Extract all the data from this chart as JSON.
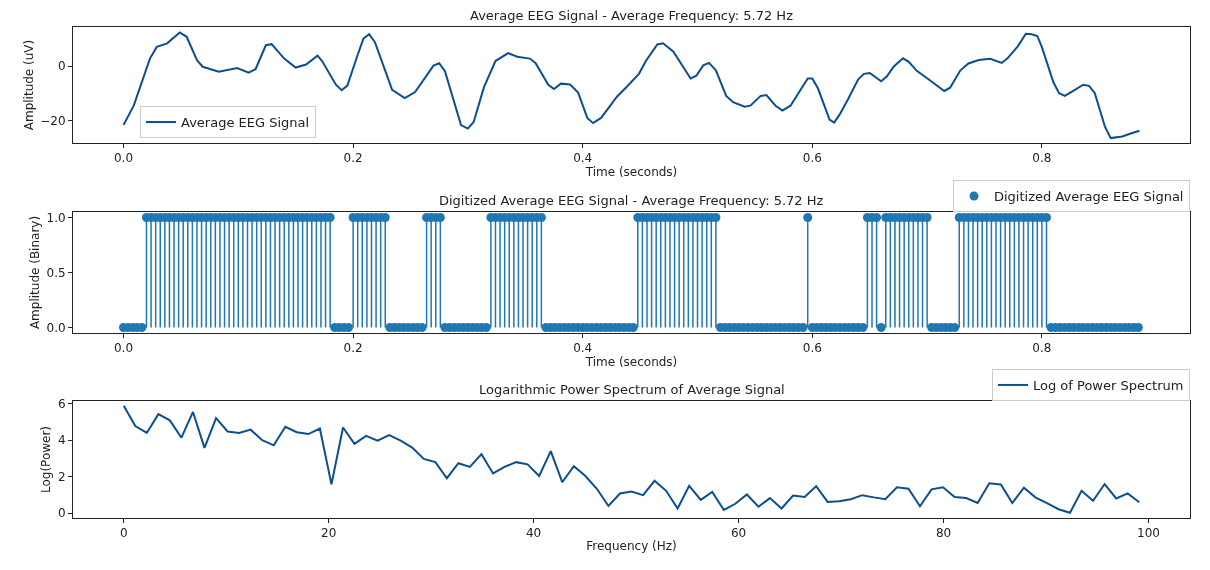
{
  "chart_data": [
    {
      "type": "line",
      "title": "Average EEG Signal - Average Frequency: 5.72 Hz",
      "xlabel": "Time (seconds)",
      "ylabel": "Amplitude (uV)",
      "legend": "bottom left",
      "line_style": "solid",
      "x": [
        0,
        0.009,
        0.023,
        0.029,
        0.038,
        0.049,
        0.055,
        0.064,
        0.069,
        0.083,
        0.099,
        0.109,
        0.115,
        0.124,
        0.129,
        0.14,
        0.15,
        0.159,
        0.169,
        0.173,
        0.185,
        0.19,
        0.195,
        0.204,
        0.209,
        0.214,
        0.219,
        0.234,
        0.245,
        0.254,
        0.27,
        0.275,
        0.28,
        0.294,
        0.3,
        0.305,
        0.314,
        0.324,
        0.335,
        0.343,
        0.354,
        0.359,
        0.37,
        0.375,
        0.381,
        0.389,
        0.396,
        0.404,
        0.409,
        0.416,
        0.43,
        0.438,
        0.449,
        0.455,
        0.465,
        0.47,
        0.479,
        0.494,
        0.499,
        0.505,
        0.51,
        0.516,
        0.525,
        0.531,
        0.541,
        0.546,
        0.555,
        0.56,
        0.568,
        0.574,
        0.581,
        0.596,
        0.6,
        0.605,
        0.615,
        0.619,
        0.624,
        0.631,
        0.64,
        0.645,
        0.65,
        0.66,
        0.665,
        0.671,
        0.679,
        0.684,
        0.691,
        0.7,
        0.715,
        0.72,
        0.729,
        0.736,
        0.745,
        0.755,
        0.765,
        0.77,
        0.779,
        0.786,
        0.791,
        0.796,
        0.8,
        0.81,
        0.815,
        0.82,
        0.828,
        0.836,
        0.841,
        0.846,
        0.855,
        0.86,
        0.87,
        0.878,
        0.885
      ],
      "series": [
        {
          "name": "Average EEG Signal",
          "color": "#0b4f8f",
          "values": [
            -21.6,
            -14.4,
            2.8,
            7.1,
            8.4,
            12.4,
            10.8,
            2.2,
            -0.2,
            -2.0,
            -0.7,
            -2.4,
            -1.1,
            7.7,
            8.1,
            2.8,
            -0.5,
            0.6,
            3.9,
            1.9,
            -6.8,
            -8.8,
            -7.1,
            4.2,
            10.1,
            11.8,
            8.8,
            -8.7,
            -11.7,
            -9.5,
            0.2,
            1.1,
            -1.8,
            -21.6,
            -22.9,
            -20.5,
            -7.7,
            1.9,
            4.8,
            3.5,
            2.8,
            1.1,
            -6.8,
            -8.4,
            -6.4,
            -6.7,
            -9.7,
            -19.0,
            -20.9,
            -19.0,
            -11.1,
            -7.7,
            -2.8,
            1.9,
            8.0,
            8.4,
            5.3,
            -4.5,
            -3.5,
            0.3,
            1.2,
            -1.5,
            -10.9,
            -13.2,
            -14.9,
            -14.5,
            -10.9,
            -10.6,
            -14.5,
            -16.3,
            -14.5,
            -4.5,
            -4.5,
            -8.2,
            -19.6,
            -20.7,
            -17.6,
            -12.2,
            -4.8,
            -2.8,
            -2.5,
            -5.5,
            -3.7,
            -0.1,
            2.9,
            1.6,
            -1.7,
            -4.4,
            -9.1,
            -7.9,
            -1.5,
            1.0,
            2.3,
            2.7,
            1.2,
            2.9,
            7.3,
            11.9,
            11.7,
            11.1,
            7.0,
            -5.9,
            -9.9,
            -10.9,
            -8.9,
            -6.8,
            -7.2,
            -9.8,
            -22.3,
            -26.4,
            -25.8,
            -24.6,
            -23.7
          ]
        }
      ],
      "xlim": [
        -0.044,
        0.929
      ],
      "ylim": [
        -28.2,
        14.4
      ],
      "xticks": [
        {
          "value": 0,
          "label": "0.0"
        },
        {
          "value": 0.2,
          "label": "0.2"
        },
        {
          "value": 0.4,
          "label": "0.4"
        },
        {
          "value": 0.6,
          "label": "0.6"
        },
        {
          "value": 0.8,
          "label": "0.8"
        }
      ],
      "yticks": [
        {
          "value": -20,
          "label": "−20"
        },
        0
      ]
    },
    {
      "type": "lollipop",
      "title": "Digitized Average EEG Signal - Average Frequency: 5.72 Hz",
      "xlabel": "Time (seconds)",
      "ylabel": "Amplitude (Binary)",
      "legend": "top right",
      "marker": "circle",
      "x": [
        0,
        0.004,
        0.008,
        0.012,
        0.016,
        0.02,
        0.024,
        0.028,
        0.032,
        0.036,
        0.04,
        0.044,
        0.048,
        0.052,
        0.056,
        0.06,
        0.064,
        0.068,
        0.072,
        0.076,
        0.08,
        0.084,
        0.088,
        0.092,
        0.096,
        0.1,
        0.104,
        0.108,
        0.112,
        0.116,
        0.12,
        0.124,
        0.128,
        0.132,
        0.136,
        0.14,
        0.144,
        0.148,
        0.152,
        0.156,
        0.16,
        0.164,
        0.168,
        0.172,
        0.176,
        0.18,
        0.184,
        0.188,
        0.192,
        0.196,
        0.2,
        0.204,
        0.208,
        0.212,
        0.216,
        0.22,
        0.224,
        0.228,
        0.232,
        0.236,
        0.24,
        0.244,
        0.248,
        0.252,
        0.256,
        0.26,
        0.264,
        0.268,
        0.272,
        0.276,
        0.28,
        0.284,
        0.288,
        0.292,
        0.296,
        0.3,
        0.304,
        0.308,
        0.312,
        0.316,
        0.32,
        0.324,
        0.328,
        0.332,
        0.336,
        0.34,
        0.344,
        0.348,
        0.352,
        0.356,
        0.36,
        0.364,
        0.368,
        0.372,
        0.376,
        0.38,
        0.384,
        0.388,
        0.392,
        0.396,
        0.4,
        0.404,
        0.408,
        0.412,
        0.416,
        0.42,
        0.424,
        0.428,
        0.432,
        0.436,
        0.44,
        0.444,
        0.448,
        0.452,
        0.456,
        0.46,
        0.464,
        0.468,
        0.472,
        0.476,
        0.48,
        0.484,
        0.488,
        0.492,
        0.496,
        0.5,
        0.504,
        0.508,
        0.512,
        0.516,
        0.52,
        0.524,
        0.528,
        0.532,
        0.536,
        0.54,
        0.544,
        0.548,
        0.552,
        0.556,
        0.56,
        0.564,
        0.568,
        0.572,
        0.576,
        0.58,
        0.584,
        0.588,
        0.592,
        0.596,
        0.6,
        0.604,
        0.608,
        0.612,
        0.616,
        0.62,
        0.624,
        0.628,
        0.632,
        0.636,
        0.64,
        0.644,
        0.648,
        0.652,
        0.656,
        0.66,
        0.664,
        0.668,
        0.672,
        0.676,
        0.68,
        0.684,
        0.688,
        0.692,
        0.696,
        0.7,
        0.704,
        0.708,
        0.712,
        0.716,
        0.72,
        0.724,
        0.728,
        0.732,
        0.736,
        0.74,
        0.744,
        0.748,
        0.752,
        0.756,
        0.76,
        0.764,
        0.768,
        0.772,
        0.776,
        0.78,
        0.784,
        0.788,
        0.792,
        0.796,
        0.8,
        0.804,
        0.808,
        0.812,
        0.816,
        0.82,
        0.824,
        0.828,
        0.832,
        0.836,
        0.84,
        0.844,
        0.848,
        0.852,
        0.856,
        0.86,
        0.864,
        0.868,
        0.872,
        0.876,
        0.88,
        0.884
      ],
      "series": [
        {
          "name": "Digitized Average EEG Signal",
          "color": "#1f77b4",
          "values": [
            0,
            0,
            0,
            0,
            0,
            1,
            1,
            1,
            1,
            1,
            1,
            1,
            1,
            1,
            1,
            1,
            1,
            1,
            1,
            1,
            1,
            1,
            1,
            1,
            1,
            1,
            1,
            1,
            1,
            1,
            1,
            1,
            1,
            1,
            1,
            1,
            1,
            1,
            1,
            1,
            1,
            1,
            1,
            1,
            1,
            1,
            0,
            0,
            0,
            0,
            1,
            1,
            1,
            1,
            1,
            1,
            1,
            1,
            0,
            0,
            0,
            0,
            0,
            0,
            0,
            0,
            1,
            1,
            1,
            1,
            0,
            0,
            0,
            0,
            0,
            0,
            0,
            0,
            0,
            0,
            1,
            1,
            1,
            1,
            1,
            1,
            1,
            1,
            1,
            1,
            1,
            1,
            0,
            0,
            0,
            0,
            0,
            0,
            0,
            0,
            0,
            0,
            0,
            0,
            0,
            0,
            0,
            0,
            0,
            0,
            0,
            0,
            1,
            1,
            1,
            1,
            1,
            1,
            1,
            1,
            1,
            1,
            1,
            1,
            1,
            1,
            1,
            1,
            1,
            1,
            0,
            0,
            0,
            0,
            0,
            0,
            0,
            0,
            0,
            0,
            0,
            0,
            0,
            0,
            0,
            0,
            0,
            0,
            0,
            1,
            0,
            0,
            0,
            0,
            0,
            0,
            0,
            0,
            0,
            0,
            0,
            0,
            1,
            1,
            1,
            0,
            1,
            1,
            1,
            1,
            1,
            1,
            1,
            1,
            1,
            1,
            0,
            0,
            0,
            0,
            0,
            0,
            1,
            1,
            1,
            1,
            1,
            1,
            1,
            1,
            1,
            1,
            1,
            1,
            1,
            1,
            1,
            1,
            1,
            1,
            1,
            1,
            0,
            0,
            0,
            0,
            0,
            0,
            0,
            0,
            0,
            0,
            0,
            0,
            0,
            0,
            0,
            0,
            0,
            0,
            0,
            0
          ]
        }
      ],
      "xlim": [
        -0.044,
        0.929
      ],
      "ylim": [
        -0.05,
        1.05
      ],
      "xticks": [
        {
          "value": 0,
          "label": "0.0"
        },
        {
          "value": 0.2,
          "label": "0.2"
        },
        {
          "value": 0.4,
          "label": "0.4"
        },
        {
          "value": 0.6,
          "label": "0.6"
        },
        {
          "value": 0.8,
          "label": "0.8"
        }
      ],
      "yticks": [
        {
          "value": 0,
          "label": "0.0"
        },
        0.5,
        {
          "value": 1,
          "label": "1.0"
        }
      ]
    },
    {
      "type": "line",
      "title": "Logarithmic Power Spectrum of Average Signal",
      "xlabel": "Frequency (Hz)",
      "ylabel": "Log(Power)",
      "legend": "top right",
      "line_style": "solid",
      "x": [
        0,
        1.13,
        2.25,
        3.38,
        4.5,
        5.63,
        6.76,
        7.88,
        9.01,
        10.14,
        11.26,
        12.39,
        13.51,
        14.64,
        15.77,
        16.89,
        18.02,
        19.14,
        20.27,
        21.4,
        22.52,
        23.65,
        24.77,
        25.9,
        27.03,
        28.15,
        29.28,
        30.41,
        31.53,
        32.66,
        33.78,
        34.91,
        36.04,
        37.16,
        38.29,
        39.41,
        40.54,
        41.67,
        42.79,
        43.92,
        45.05,
        46.17,
        47.3,
        48.42,
        49.55,
        50.68,
        51.8,
        52.93,
        54.05,
        55.18,
        56.31,
        57.43,
        58.56,
        59.68,
        60.81,
        61.94,
        63.06,
        64.19,
        65.32,
        66.44,
        67.57,
        68.69,
        69.82,
        70.95,
        72.07,
        73.2,
        74.32,
        75.45,
        76.58,
        77.7,
        78.83,
        79.95,
        81.08,
        82.21,
        83.33,
        84.46,
        85.59,
        86.71,
        87.84,
        88.96,
        90.09,
        91.22,
        92.34,
        93.47,
        94.59,
        95.72,
        96.85,
        97.97,
        99.1
      ],
      "series": [
        {
          "name": "Log of Power Spectrum",
          "color": "#0b4f8f",
          "values": [
            5.89,
            4.78,
            4.4,
            5.43,
            5.09,
            4.14,
            5.55,
            3.58,
            5.21,
            4.48,
            4.4,
            4.58,
            4.0,
            3.72,
            4.74,
            4.44,
            4.34,
            4.64,
            1.58,
            4.7,
            3.8,
            4.24,
            3.98,
            4.28,
            3.98,
            3.6,
            2.98,
            2.8,
            1.92,
            2.74,
            2.54,
            3.24,
            2.18,
            2.54,
            2.8,
            2.68,
            2.04,
            3.4,
            1.7,
            2.58,
            2.04,
            1.34,
            0.4,
            1.08,
            1.19,
            0.99,
            1.78,
            1.23,
            0.26,
            1.5,
            0.73,
            1.17,
            0.18,
            0.52,
            1.03,
            0.36,
            0.83,
            0.26,
            0.97,
            0.89,
            1.48,
            0.62,
            0.66,
            0.77,
            0.99,
            0.87,
            0.77,
            1.42,
            1.34,
            0.38,
            1.31,
            1.42,
            0.89,
            0.83,
            0.56,
            1.64,
            1.58,
            0.56,
            1.4,
            0.87,
            0.56,
            0.22,
            0.03,
            1.23,
            0.68,
            1.6,
            0.81,
            1.09,
            0.6
          ]
        }
      ],
      "xlim": [
        -4.95,
        104.05
      ],
      "ylim": [
        -0.26,
        6.15
      ],
      "xticks": [
        0,
        20,
        40,
        60,
        80,
        100
      ],
      "yticks": [
        0,
        2,
        4,
        6
      ]
    }
  ]
}
